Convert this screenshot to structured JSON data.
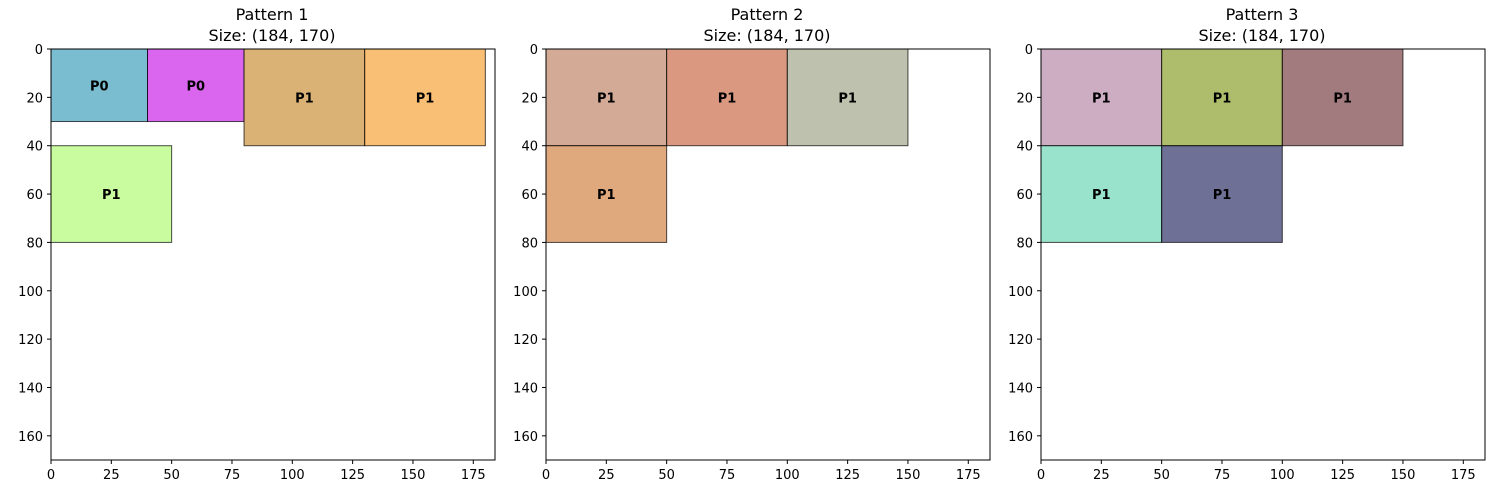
{
  "chart_data": [
    {
      "type": "rectangle-packing",
      "title": "Pattern 1",
      "subtitle": "Size: (184, 170)",
      "xlim": [
        0,
        184
      ],
      "ylim": [
        170,
        0
      ],
      "xticks": [
        0,
        25,
        50,
        75,
        100,
        125,
        150,
        175
      ],
      "yticks": [
        0,
        20,
        40,
        60,
        80,
        100,
        120,
        140,
        160
      ],
      "rects": [
        {
          "label": "P0",
          "x": 0,
          "y": 0,
          "w": 40,
          "h": 30,
          "color": "#41a0bc"
        },
        {
          "label": "P0",
          "x": 40,
          "y": 0,
          "w": 40,
          "h": 30,
          "color": "#cb25e8"
        },
        {
          "label": "P1",
          "x": 80,
          "y": 0,
          "w": 50,
          "h": 40,
          "color": "#cb923c"
        },
        {
          "label": "P1",
          "x": 130,
          "y": 0,
          "w": 50,
          "h": 40,
          "color": "#f6a43a"
        },
        {
          "label": "P1",
          "x": 0,
          "y": 40,
          "w": 50,
          "h": 40,
          "color": "#b2fb76"
        }
      ]
    },
    {
      "type": "rectangle-packing",
      "title": "Pattern 2",
      "subtitle": "Size: (184, 170)",
      "xlim": [
        0,
        184
      ],
      "ylim": [
        170,
        0
      ],
      "xticks": [
        0,
        25,
        50,
        75,
        100,
        125,
        150,
        175
      ],
      "yticks": [
        0,
        20,
        40,
        60,
        80,
        100,
        120,
        140,
        160
      ],
      "rects": [
        {
          "label": "P1",
          "x": 0,
          "y": 0,
          "w": 50,
          "h": 40,
          "color": "#bf8669"
        },
        {
          "label": "P1",
          "x": 50,
          "y": 0,
          "w": 50,
          "h": 40,
          "color": "#cb6c4b"
        },
        {
          "label": "P1",
          "x": 100,
          "y": 0,
          "w": 50,
          "h": 40,
          "color": "#a3a68a"
        },
        {
          "label": "P1",
          "x": 0,
          "y": 40,
          "w": 50,
          "h": 40,
          "color": "#d18546"
        }
      ]
    },
    {
      "type": "rectangle-packing",
      "title": "Pattern 3",
      "subtitle": "Size: (184, 170)",
      "xlim": [
        0,
        184
      ],
      "ylim": [
        170,
        0
      ],
      "xticks": [
        0,
        25,
        50,
        75,
        100,
        125,
        150,
        175
      ],
      "yticks": [
        0,
        20,
        40,
        60,
        80,
        100,
        120,
        140,
        160
      ],
      "rects": [
        {
          "label": "P1",
          "x": 0,
          "y": 0,
          "w": 50,
          "h": 40,
          "color": "#b78aa8"
        },
        {
          "label": "P1",
          "x": 50,
          "y": 0,
          "w": 50,
          "h": 40,
          "color": "#8ba12c"
        },
        {
          "label": "P1",
          "x": 100,
          "y": 0,
          "w": 50,
          "h": 40,
          "color": "#7b4349"
        },
        {
          "label": "P1",
          "x": 0,
          "y": 40,
          "w": 50,
          "h": 40,
          "color": "#6dd6b6"
        },
        {
          "label": "P1",
          "x": 50,
          "y": 40,
          "w": 50,
          "h": 40,
          "color": "#313369"
        }
      ]
    }
  ]
}
